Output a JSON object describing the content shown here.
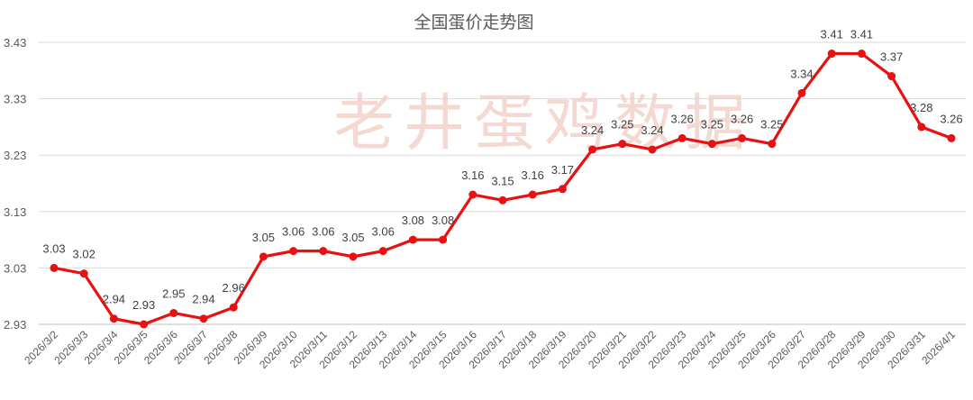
{
  "chart_data": {
    "type": "line",
    "title": "全国蛋价走势图",
    "watermark": "老井蛋鸡数据",
    "xlabel": "",
    "ylabel": "",
    "ylim": [
      2.93,
      3.43
    ],
    "yticks": [
      "2.93",
      "3.03",
      "3.13",
      "3.23",
      "3.33",
      "3.43"
    ],
    "grid": "horizontal",
    "series_color": "#e81010",
    "x": [
      "2026/3/2",
      "2026/3/3",
      "2026/3/4",
      "2026/3/5",
      "2026/3/6",
      "2026/3/7",
      "2026/3/8",
      "2026/3/9",
      "2026/3/10",
      "2026/3/11",
      "2026/3/12",
      "2026/3/13",
      "2026/3/14",
      "2026/3/15",
      "2026/3/16",
      "2026/3/17",
      "2026/3/18",
      "2026/3/19",
      "2026/3/20",
      "2026/3/21",
      "2026/3/22",
      "2026/3/23",
      "2026/3/24",
      "2026/3/25",
      "2026/3/26",
      "2026/3/27",
      "2026/3/28",
      "2026/3/29",
      "2026/3/30",
      "2026/3/31",
      "2026/4/1"
    ],
    "values": [
      3.03,
      3.02,
      2.94,
      2.93,
      2.95,
      2.94,
      2.96,
      3.05,
      3.06,
      3.06,
      3.05,
      3.06,
      3.08,
      3.08,
      3.16,
      3.15,
      3.16,
      3.17,
      3.24,
      3.25,
      3.24,
      3.26,
      3.25,
      3.26,
      3.25,
      3.34,
      3.41,
      3.41,
      3.37,
      3.28,
      3.26
    ],
    "labels": [
      "3.03",
      "3.02",
      "2.94",
      "2.93",
      "2.95",
      "2.94",
      "2.96",
      "3.05",
      "3.06",
      "3.06",
      "3.05",
      "3.06",
      "3.08",
      "3.08",
      "3.16",
      "3.15",
      "3.16",
      "3.17",
      "3.24",
      "3.25",
      "3.24",
      "3.26",
      "3.25",
      "3.26",
      "3.25",
      "3.34",
      "3.41",
      "3.41",
      "3.37",
      "3.28",
      "3.26"
    ]
  }
}
